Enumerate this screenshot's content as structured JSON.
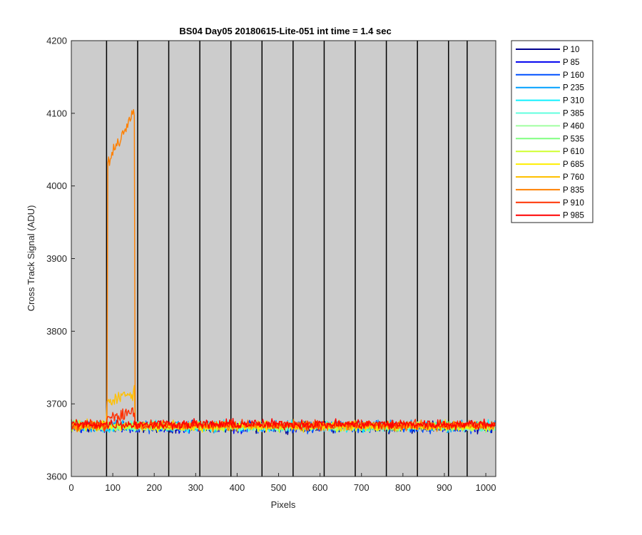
{
  "chart_data": {
    "type": "line",
    "title": "BS04 Day05 20180615-Lite-051 int time = 1.4 sec",
    "xlabel": "Pixels",
    "ylabel": "Cross Track Signal (ADU)",
    "xlim": [
      0,
      1024
    ],
    "ylim": [
      3600,
      4200
    ],
    "xticks": [
      0,
      100,
      200,
      300,
      400,
      500,
      600,
      700,
      800,
      900,
      1000
    ],
    "yticks": [
      3600,
      3700,
      3800,
      3900,
      4000,
      4100,
      4200
    ],
    "grid": false,
    "legend_position": "outside-top-right",
    "background_color": "#cccccc",
    "vertical_separators_x": [
      85,
      160,
      235,
      310,
      385,
      460,
      535,
      610,
      685,
      760,
      835,
      910,
      955
    ],
    "series": [
      {
        "name": "P 10",
        "color": "#00008f",
        "baseline": 3668,
        "noise": 9,
        "step": null
      },
      {
        "name": "P 85",
        "color": "#0000ef",
        "baseline": 3668,
        "noise": 9,
        "step": null
      },
      {
        "name": "P 160",
        "color": "#0050ff",
        "baseline": 3668,
        "noise": 9,
        "step": null
      },
      {
        "name": "P 235",
        "color": "#00a0ff",
        "baseline": 3669,
        "noise": 9,
        "step": null
      },
      {
        "name": "P 310",
        "color": "#10f0ff",
        "baseline": 3669,
        "noise": 9,
        "step": null
      },
      {
        "name": "P 385",
        "color": "#60ffdf",
        "baseline": 3669,
        "noise": 8,
        "step": null
      },
      {
        "name": "P 460",
        "color": "#a0ffa0",
        "baseline": 3669,
        "noise": 8,
        "step": null
      },
      {
        "name": "P 535",
        "color": "#80ff80",
        "baseline": 3669,
        "noise": 8,
        "step": null
      },
      {
        "name": "P 610",
        "color": "#d0ff30",
        "baseline": 3669,
        "noise": 8,
        "step": null
      },
      {
        "name": "P 685",
        "color": "#ffee00",
        "baseline": 3669,
        "noise": 8,
        "step": null
      },
      {
        "name": "P 760",
        "color": "#ffc000",
        "baseline": 3670,
        "noise": 8,
        "step": {
          "x0": 85,
          "x1": 153,
          "level_start": 3700,
          "level_end": 3718
        }
      },
      {
        "name": "P 835",
        "color": "#ff8000",
        "baseline": 3670,
        "noise": 8,
        "step": {
          "x0": 87,
          "x1": 153,
          "level_start": 4030,
          "level_end": 4105
        }
      },
      {
        "name": "P 910",
        "color": "#ff3000",
        "baseline": 3671,
        "noise": 8,
        "step": {
          "x0": 85,
          "x1": 153,
          "level_start": 3682,
          "level_end": 3690
        }
      },
      {
        "name": "P 985",
        "color": "#ff0000",
        "baseline": 3672,
        "noise": 8,
        "step": null
      }
    ]
  }
}
